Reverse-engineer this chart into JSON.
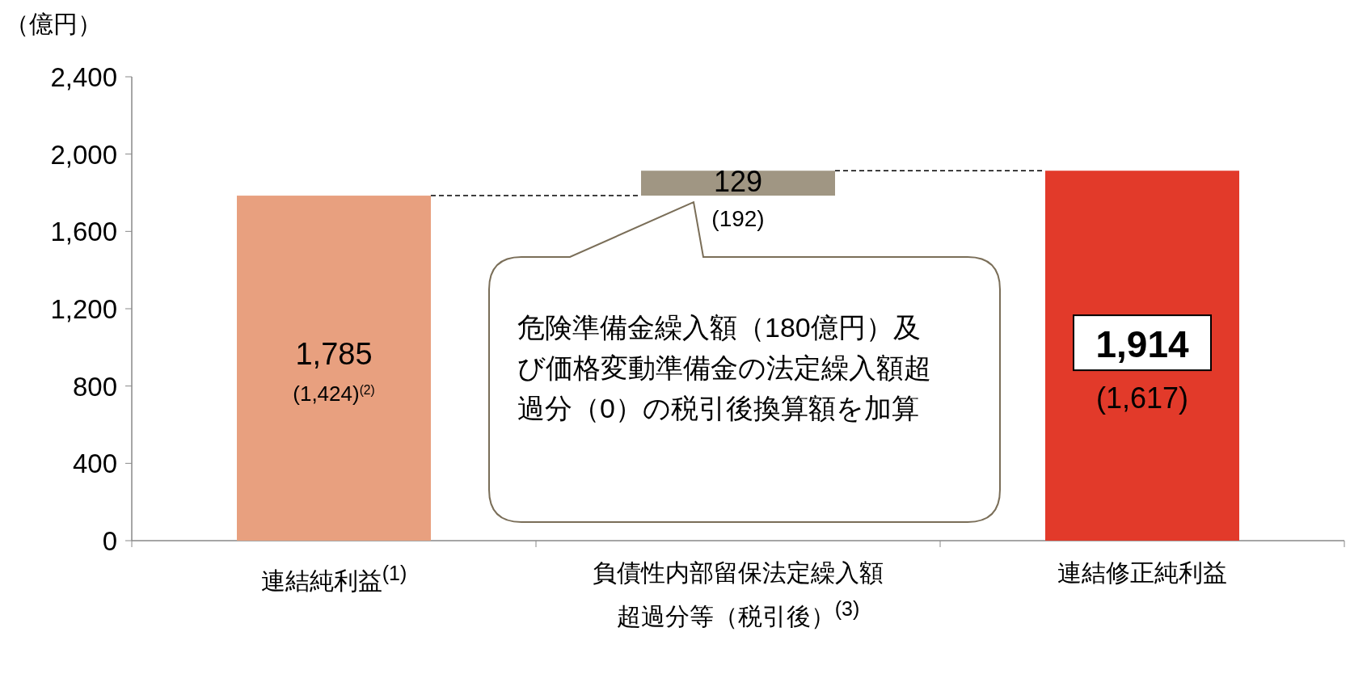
{
  "chart_data": {
    "type": "bar",
    "ylabel": "（億円）",
    "categories": [
      "連結純利益$^{(1)}$",
      "負債性内部留保法定繰入額超過分等（税引後）$^{(3)}$",
      "連結修正純利益"
    ],
    "values": [
      1785,
      129,
      1914
    ],
    "base": [
      0,
      1785,
      0
    ],
    "colors": [
      "#e8a07f",
      "#a09683",
      "#e23a2a"
    ],
    "value_labels": [
      "1,785",
      "129",
      "1,914"
    ],
    "ylim": [
      0,
      2400
    ],
    "yticks": [
      {
        "value": 0,
        "label": "0"
      },
      {
        "value": 400,
        "label": "400"
      },
      {
        "value": 800,
        "label": "800"
      },
      {
        "value": 1200,
        "label": "1,200"
      },
      {
        "value": 1600,
        "label": "1,600"
      },
      {
        "value": 2000,
        "label": "2,000"
      },
      {
        "value": 2400,
        "label": "2,400"
      }
    ],
    "grid": false,
    "annotations": [
      "(1,424)$^{(2)}$",
      "(192)",
      "(1,617)",
      "危険準備金繰入額（180億円）及び価格変動準備金の法定繰入額超過分（0）の税引後換算額を加算"
    ]
  }
}
